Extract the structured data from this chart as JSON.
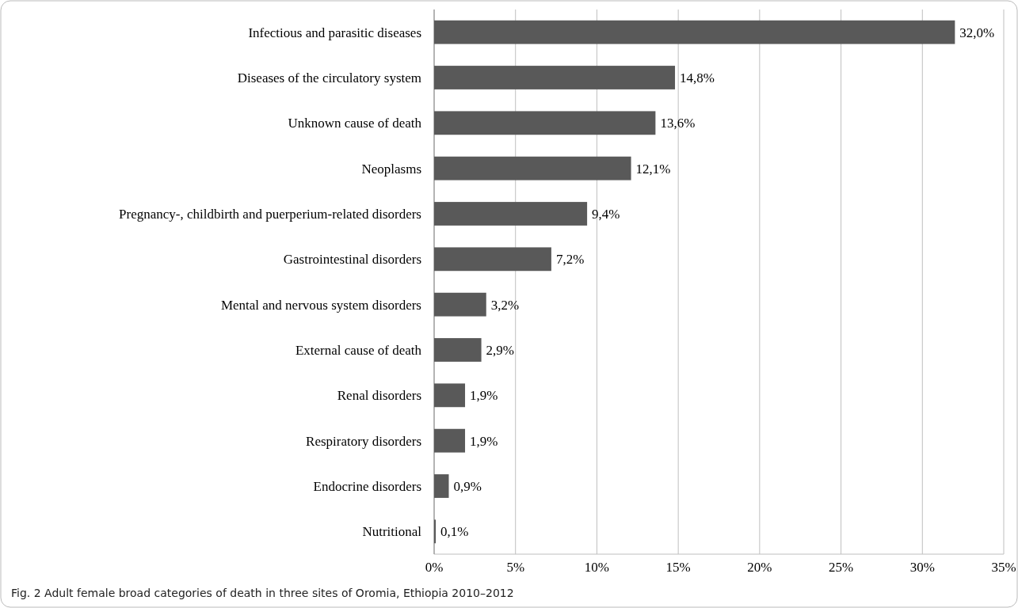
{
  "chart_data": {
    "type": "bar",
    "orientation": "horizontal",
    "categories": [
      "Infectious and parasitic diseases",
      "Diseases of the circulatory system",
      "Unknown cause of death",
      "Neoplasms",
      "Pregnancy-, childbirth and puerperium-related disorders",
      "Gastrointestinal disorders",
      "Mental and nervous system disorders",
      "External cause of death",
      "Renal disorders",
      "Respiratory disorders",
      "Endocrine disorders",
      "Nutritional"
    ],
    "values": [
      32.0,
      14.8,
      13.6,
      12.1,
      9.4,
      7.2,
      3.2,
      2.9,
      1.9,
      1.9,
      0.9,
      0.1
    ],
    "value_labels": [
      "32,0%",
      "14,8%",
      "13,6%",
      "12,1%",
      "9,4%",
      "7,2%",
      "3,2%",
      "2,9%",
      "1,9%",
      "1,9%",
      "0,9%",
      "0,1%"
    ],
    "color": "#595959",
    "xlim": [
      0,
      35
    ],
    "xticks": [
      {
        "value": 0,
        "label": "0%"
      },
      {
        "value": 5,
        "label": "5%"
      },
      {
        "value": 10,
        "label": "10%"
      },
      {
        "value": 15,
        "label": "15%"
      },
      {
        "value": 20,
        "label": "20%"
      },
      {
        "value": 25,
        "label": "25%"
      },
      {
        "value": 30,
        "label": "30%"
      },
      {
        "value": 35,
        "label": "35%"
      }
    ],
    "grid": "x",
    "annotations": [
      "Fig. 2  Adult female broad categories of death in three sites of Oromia, Ethiopia 2010–2012"
    ]
  }
}
